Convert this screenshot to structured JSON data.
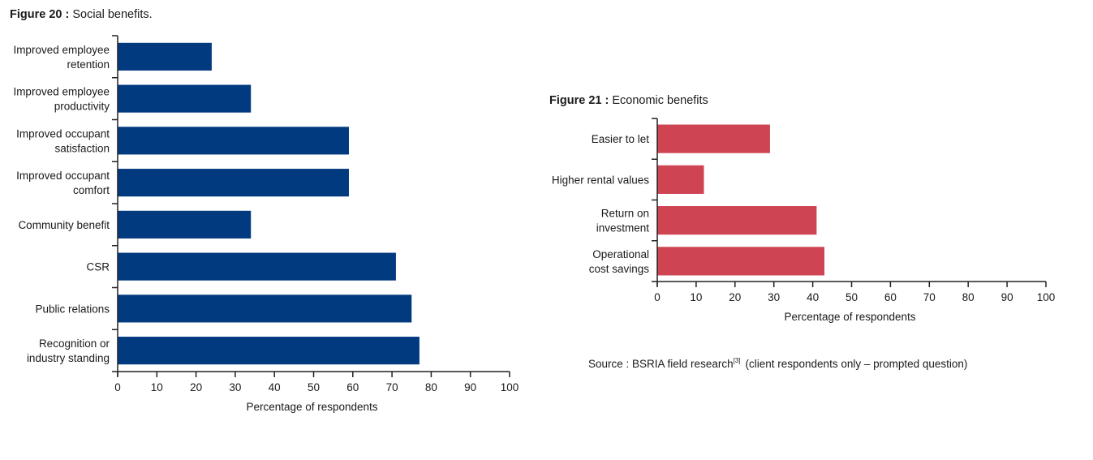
{
  "chart_data": [
    {
      "type": "bar",
      "orientation": "horizontal",
      "title_bold": "Figure 20 :",
      "title": "Social benefits.",
      "categories": [
        [
          "Improved employee",
          "retention"
        ],
        [
          "Improved employee",
          "productivity"
        ],
        [
          "Improved occupant",
          "satisfaction"
        ],
        [
          "Improved occupant",
          "comfort"
        ],
        [
          "Community benefit"
        ],
        [
          "CSR"
        ],
        [
          "Public relations"
        ],
        [
          "Recognition or",
          "industry standing"
        ]
      ],
      "values": [
        24,
        34,
        59,
        59,
        34,
        71,
        75,
        77
      ],
      "xlabel": "Percentage of respondents",
      "xlim": [
        0,
        100
      ],
      "xticks": [
        0,
        10,
        20,
        30,
        40,
        50,
        60,
        70,
        80,
        90,
        100
      ],
      "grid": false,
      "color": "#023a80"
    },
    {
      "type": "bar",
      "orientation": "horizontal",
      "title_bold": "Figure 21 :",
      "title": "Economic benefits",
      "categories": [
        [
          "Easier to let"
        ],
        [
          "Higher rental values"
        ],
        [
          "Return on",
          "investment"
        ],
        [
          "Operational",
          "cost savings"
        ]
      ],
      "values": [
        29,
        12,
        41,
        43
      ],
      "xlabel": "Percentage of respondents",
      "xlim": [
        0,
        100
      ],
      "xticks": [
        0,
        10,
        20,
        30,
        40,
        50,
        60,
        70,
        80,
        90,
        100
      ],
      "grid": false,
      "color": "#cf4452"
    }
  ],
  "source": {
    "text": "Source : BSRIA field research",
    "sup": "[3]",
    "note": "(client respondents only – prompted question)"
  }
}
